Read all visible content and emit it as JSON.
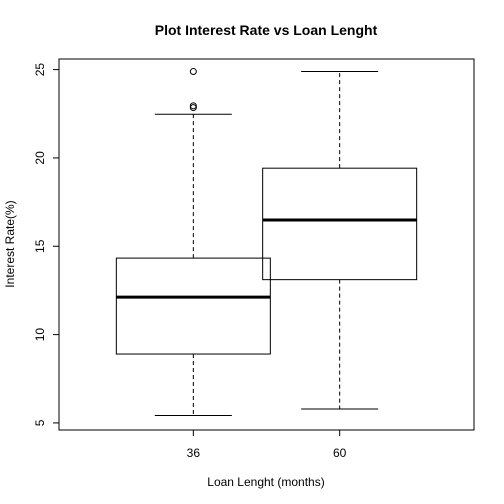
{
  "chart_data": {
    "type": "boxplot",
    "title": "Plot Interest Rate vs Loan Lenght",
    "xlabel": "Loan Lenght (months)",
    "ylabel": "Interest Rate(%)",
    "ylim": [
      4.6,
      25.6
    ],
    "y_ticks": [
      5,
      10,
      15,
      20,
      25
    ],
    "categories": [
      "36",
      "60"
    ],
    "boxes": [
      {
        "category": "36",
        "whisker_low": 5.42,
        "q1": 8.9,
        "median": 12.12,
        "q3": 14.33,
        "whisker_high": 22.47,
        "outliers": [
          22.85,
          22.95,
          24.89
        ]
      },
      {
        "category": "60",
        "whisker_low": 5.79,
        "q1": 13.11,
        "median": 16.49,
        "q3": 19.42,
        "whisker_high": 24.89,
        "outliers": []
      }
    ],
    "grid": false,
    "legend": "none"
  }
}
